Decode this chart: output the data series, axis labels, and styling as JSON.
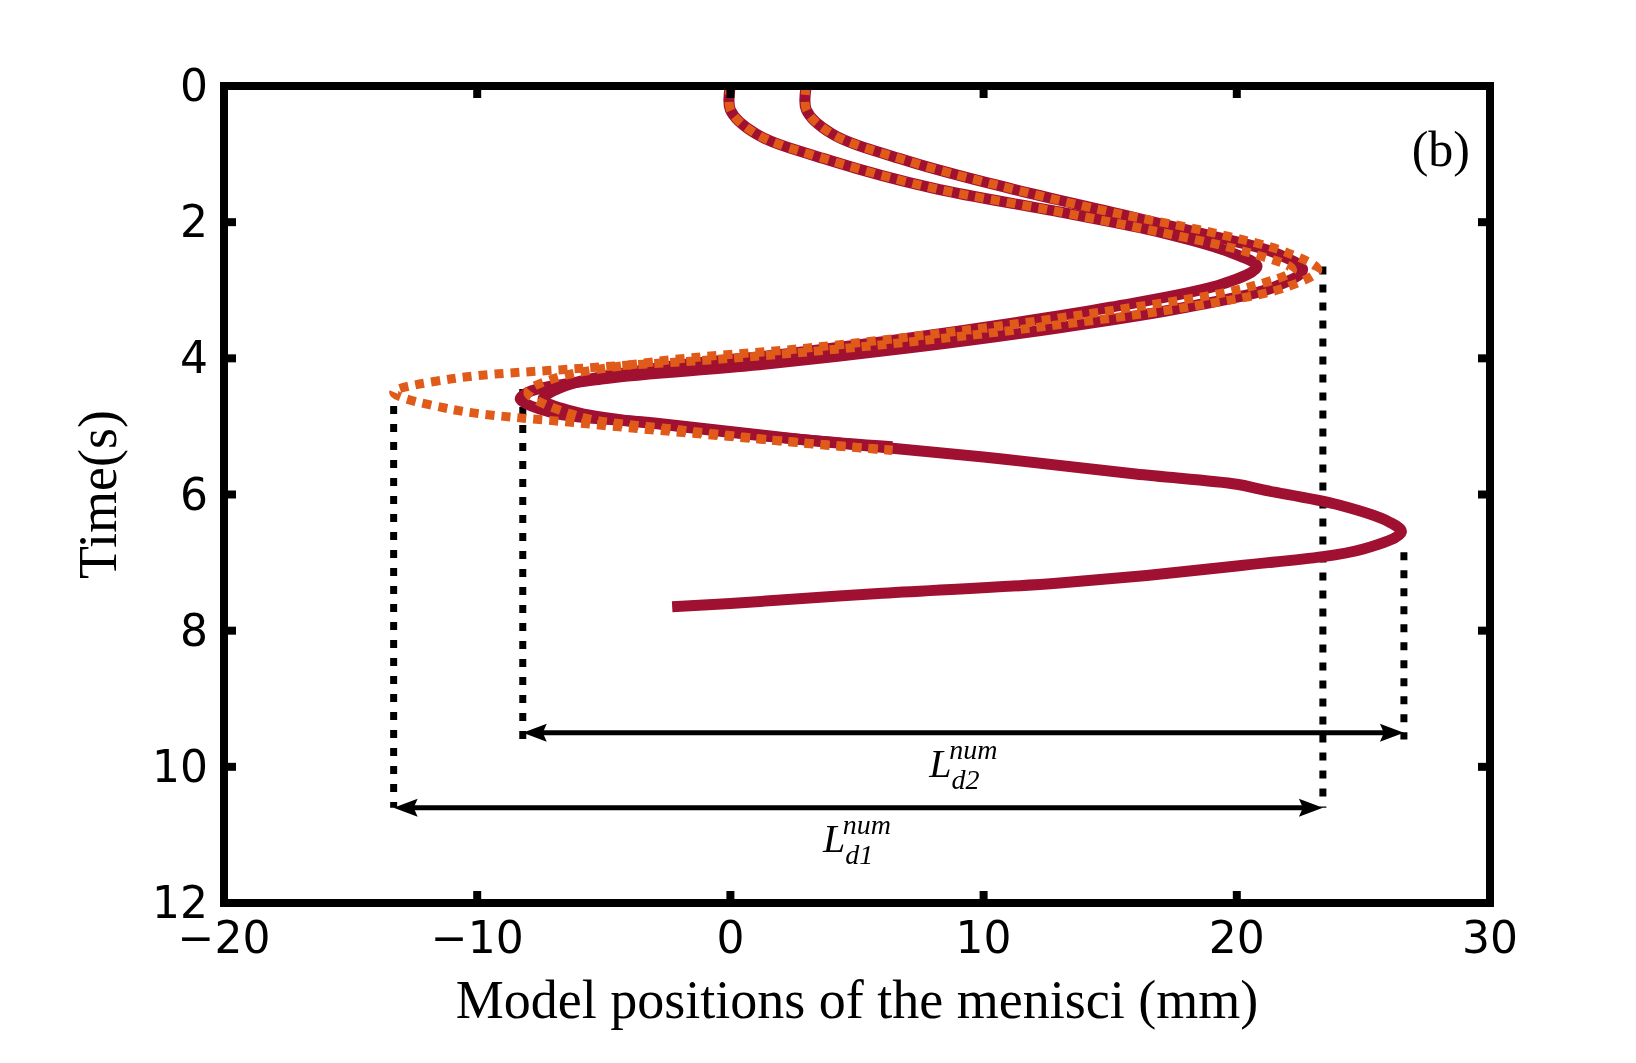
{
  "chart_data": {
    "type": "line",
    "xlabel": "Model positions of the menisci (mm)",
    "ylabel": "Time(s)",
    "xlim": [
      -20,
      30
    ],
    "xticks": [
      {
        "value": -20,
        "label": "−20"
      },
      {
        "value": -10,
        "label": "−10"
      },
      0,
      10,
      20,
      30
    ],
    "ylim": [
      12,
      0
    ],
    "yticks": [
      0,
      2,
      4,
      6,
      8,
      10,
      12
    ],
    "grid": false,
    "marker": "none",
    "annotations": [
      "(b)",
      "L$_{d2}$$^{num}$",
      "L$_{d1}$$^{num}$"
    ],
    "series": [
      {
        "color": "#a01030",
        "line_style": "solid",
        "x": [
          3,
          3,
          4,
          7,
          11,
          15,
          19,
          21.5,
          22.6,
          21.5,
          18,
          13,
          7,
          1,
          -5,
          -8,
          -8.3,
          -7,
          -3,
          3,
          10,
          16,
          20,
          21,
          24,
          26,
          26.5,
          25,
          20,
          13,
          6,
          0,
          -2.3
        ],
        "values": [
          0,
          0.35,
          0.7,
          1.1,
          1.5,
          1.85,
          2.2,
          2.45,
          2.7,
          2.95,
          3.25,
          3.55,
          3.85,
          4.1,
          4.3,
          4.5,
          4.6,
          4.8,
          4.95,
          5.2,
          5.45,
          5.7,
          5.85,
          5.93,
          6.15,
          6.4,
          6.55,
          6.8,
          7.05,
          7.3,
          7.45,
          7.6,
          7.65
        ]
      },
      {
        "color": "#a01030",
        "line_style": "solid",
        "x": [
          0,
          0,
          1,
          4,
          8,
          13,
          17,
          19.8,
          20.8,
          19.5,
          15,
          9,
          3,
          -3,
          -6.5,
          -7.4,
          -6,
          -2,
          3,
          6.4
        ],
        "values": [
          0,
          0.35,
          0.7,
          1.1,
          1.5,
          1.85,
          2.15,
          2.45,
          2.65,
          2.9,
          3.25,
          3.6,
          3.9,
          4.15,
          4.4,
          4.6,
          4.8,
          5.0,
          5.2,
          5.3
        ]
      },
      {
        "color": "#e05a1a",
        "line_style": "dotted",
        "x": [
          0,
          0,
          1,
          4,
          8,
          13,
          17,
          20.5,
          22.2,
          20.5,
          15,
          9,
          3,
          -3,
          -7,
          -8,
          -6,
          -2,
          3,
          6.4
        ],
        "values": [
          0,
          0.35,
          0.7,
          1.1,
          1.5,
          1.85,
          2.15,
          2.45,
          2.7,
          2.95,
          3.3,
          3.6,
          3.85,
          4.05,
          4.3,
          4.5,
          4.85,
          5.05,
          5.25,
          5.35
        ]
      },
      {
        "color": "#e05a1a",
        "line_style": "dotted",
        "x": [
          3,
          3,
          4,
          7,
          11,
          15,
          19,
          22,
          23.2,
          22,
          18,
          12,
          6,
          0,
          -6,
          -11,
          -13.3,
          -11,
          -6,
          0,
          6.4
        ],
        "values": [
          0,
          0.35,
          0.7,
          1.1,
          1.5,
          1.85,
          2.15,
          2.45,
          2.7,
          2.95,
          3.25,
          3.55,
          3.8,
          4.0,
          4.15,
          4.3,
          4.5,
          4.75,
          4.95,
          5.15,
          5.35
        ]
      }
    ]
  }
}
